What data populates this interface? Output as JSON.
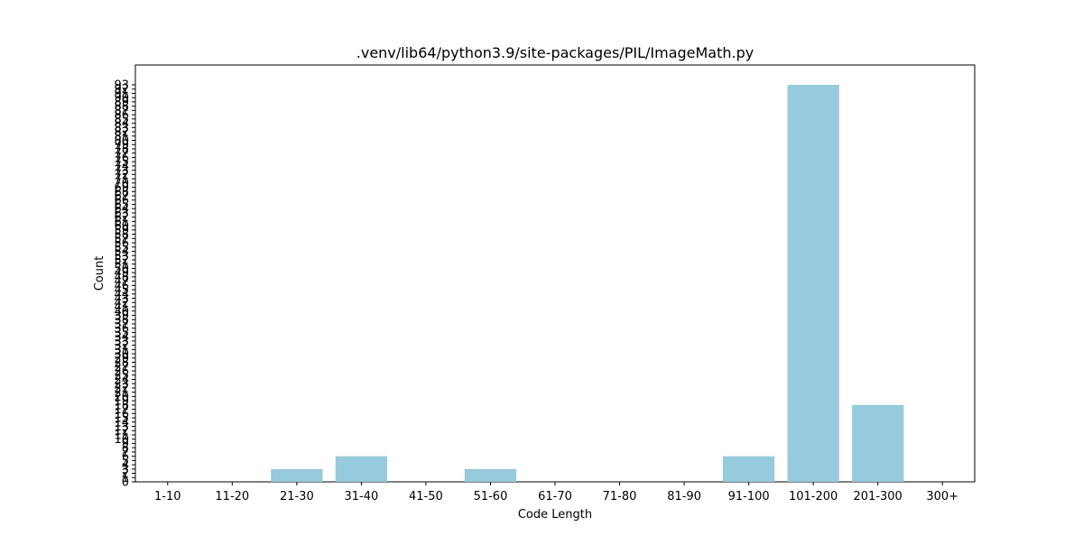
{
  "chart_data": {
    "type": "bar",
    "title": ".venv/lib64/python3.9/site-packages/PIL/ImageMath.py",
    "xlabel": "Code Length",
    "ylabel": "Count",
    "categories": [
      "1-10",
      "11-20",
      "21-30",
      "31-40",
      "41-50",
      "51-60",
      "61-70",
      "71-80",
      "81-90",
      "91-100",
      "101-200",
      "201-300",
      "300+"
    ],
    "values": [
      0,
      0,
      3,
      6,
      0,
      3,
      0,
      0,
      0,
      6,
      93,
      18,
      0
    ],
    "ylim": [
      0,
      97.65
    ],
    "yticks": [
      0,
      1,
      2,
      3,
      4,
      5,
      6,
      7,
      8,
      9,
      10,
      11,
      12,
      13,
      14,
      15,
      16,
      17,
      18,
      19,
      20,
      21,
      22,
      23,
      24,
      25,
      26,
      27,
      28,
      29,
      30,
      31,
      32,
      33,
      34,
      35,
      36,
      37,
      38,
      39,
      40,
      41,
      42,
      43,
      44,
      45,
      46,
      47,
      48,
      49,
      50,
      51,
      52,
      53,
      54,
      55,
      56,
      57,
      58,
      59,
      60,
      61,
      62,
      63,
      64,
      65,
      66,
      67,
      68,
      69,
      70,
      71,
      72,
      73,
      74,
      75,
      76,
      77,
      78,
      79,
      80,
      81,
      82,
      83,
      84,
      85,
      86,
      87,
      88,
      89,
      90,
      91,
      92,
      93
    ],
    "grid": false,
    "bar_color": "#96cadd",
    "axis_color": "#000000"
  }
}
